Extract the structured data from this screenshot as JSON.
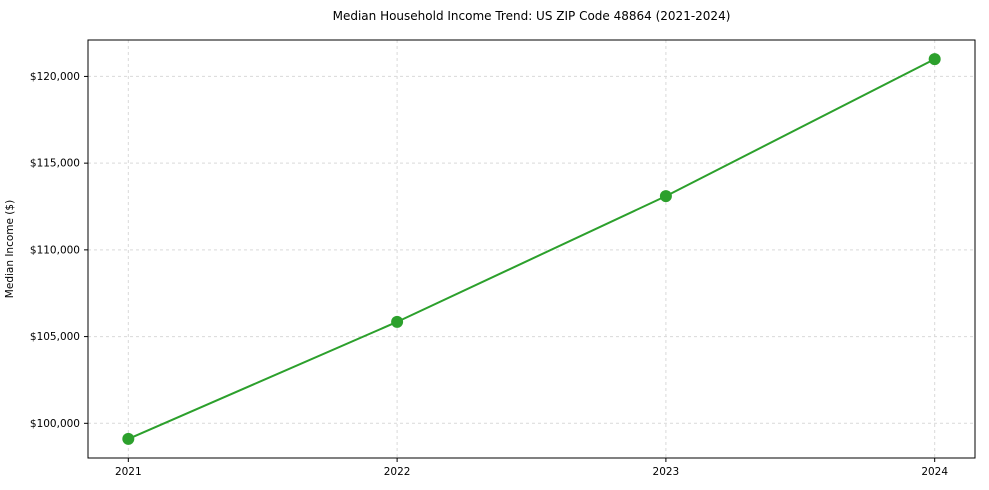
{
  "chart_data": {
    "type": "line",
    "title": "Median Household Income Trend: US ZIP Code 48864 (2021-2024)",
    "xlabel": "",
    "ylabel": "Median Income ($)",
    "x": [
      2021,
      2022,
      2023,
      2024
    ],
    "values": [
      99100,
      105850,
      113100,
      121000
    ],
    "xlim": [
      2020.85,
      2024.15
    ],
    "ylim": [
      98000,
      122100
    ],
    "xticks": [
      {
        "value": 2021,
        "label": "2021"
      },
      {
        "value": 2022,
        "label": "2022"
      },
      {
        "value": 2023,
        "label": "2023"
      },
      {
        "value": 2024,
        "label": "2024"
      }
    ],
    "yticks": [
      {
        "value": 100000,
        "label": "$100,000"
      },
      {
        "value": 105000,
        "label": "$105,000"
      },
      {
        "value": 110000,
        "label": "$110,000"
      },
      {
        "value": 115000,
        "label": "$115,000"
      },
      {
        "value": 120000,
        "label": "$120,000"
      }
    ],
    "grid": true,
    "legend": false,
    "line_color": "#2ca02c",
    "marker_color": "#2ca02c",
    "grid_color": "#d9d9d9",
    "axis_color": "#000000",
    "background": "#ffffff"
  }
}
